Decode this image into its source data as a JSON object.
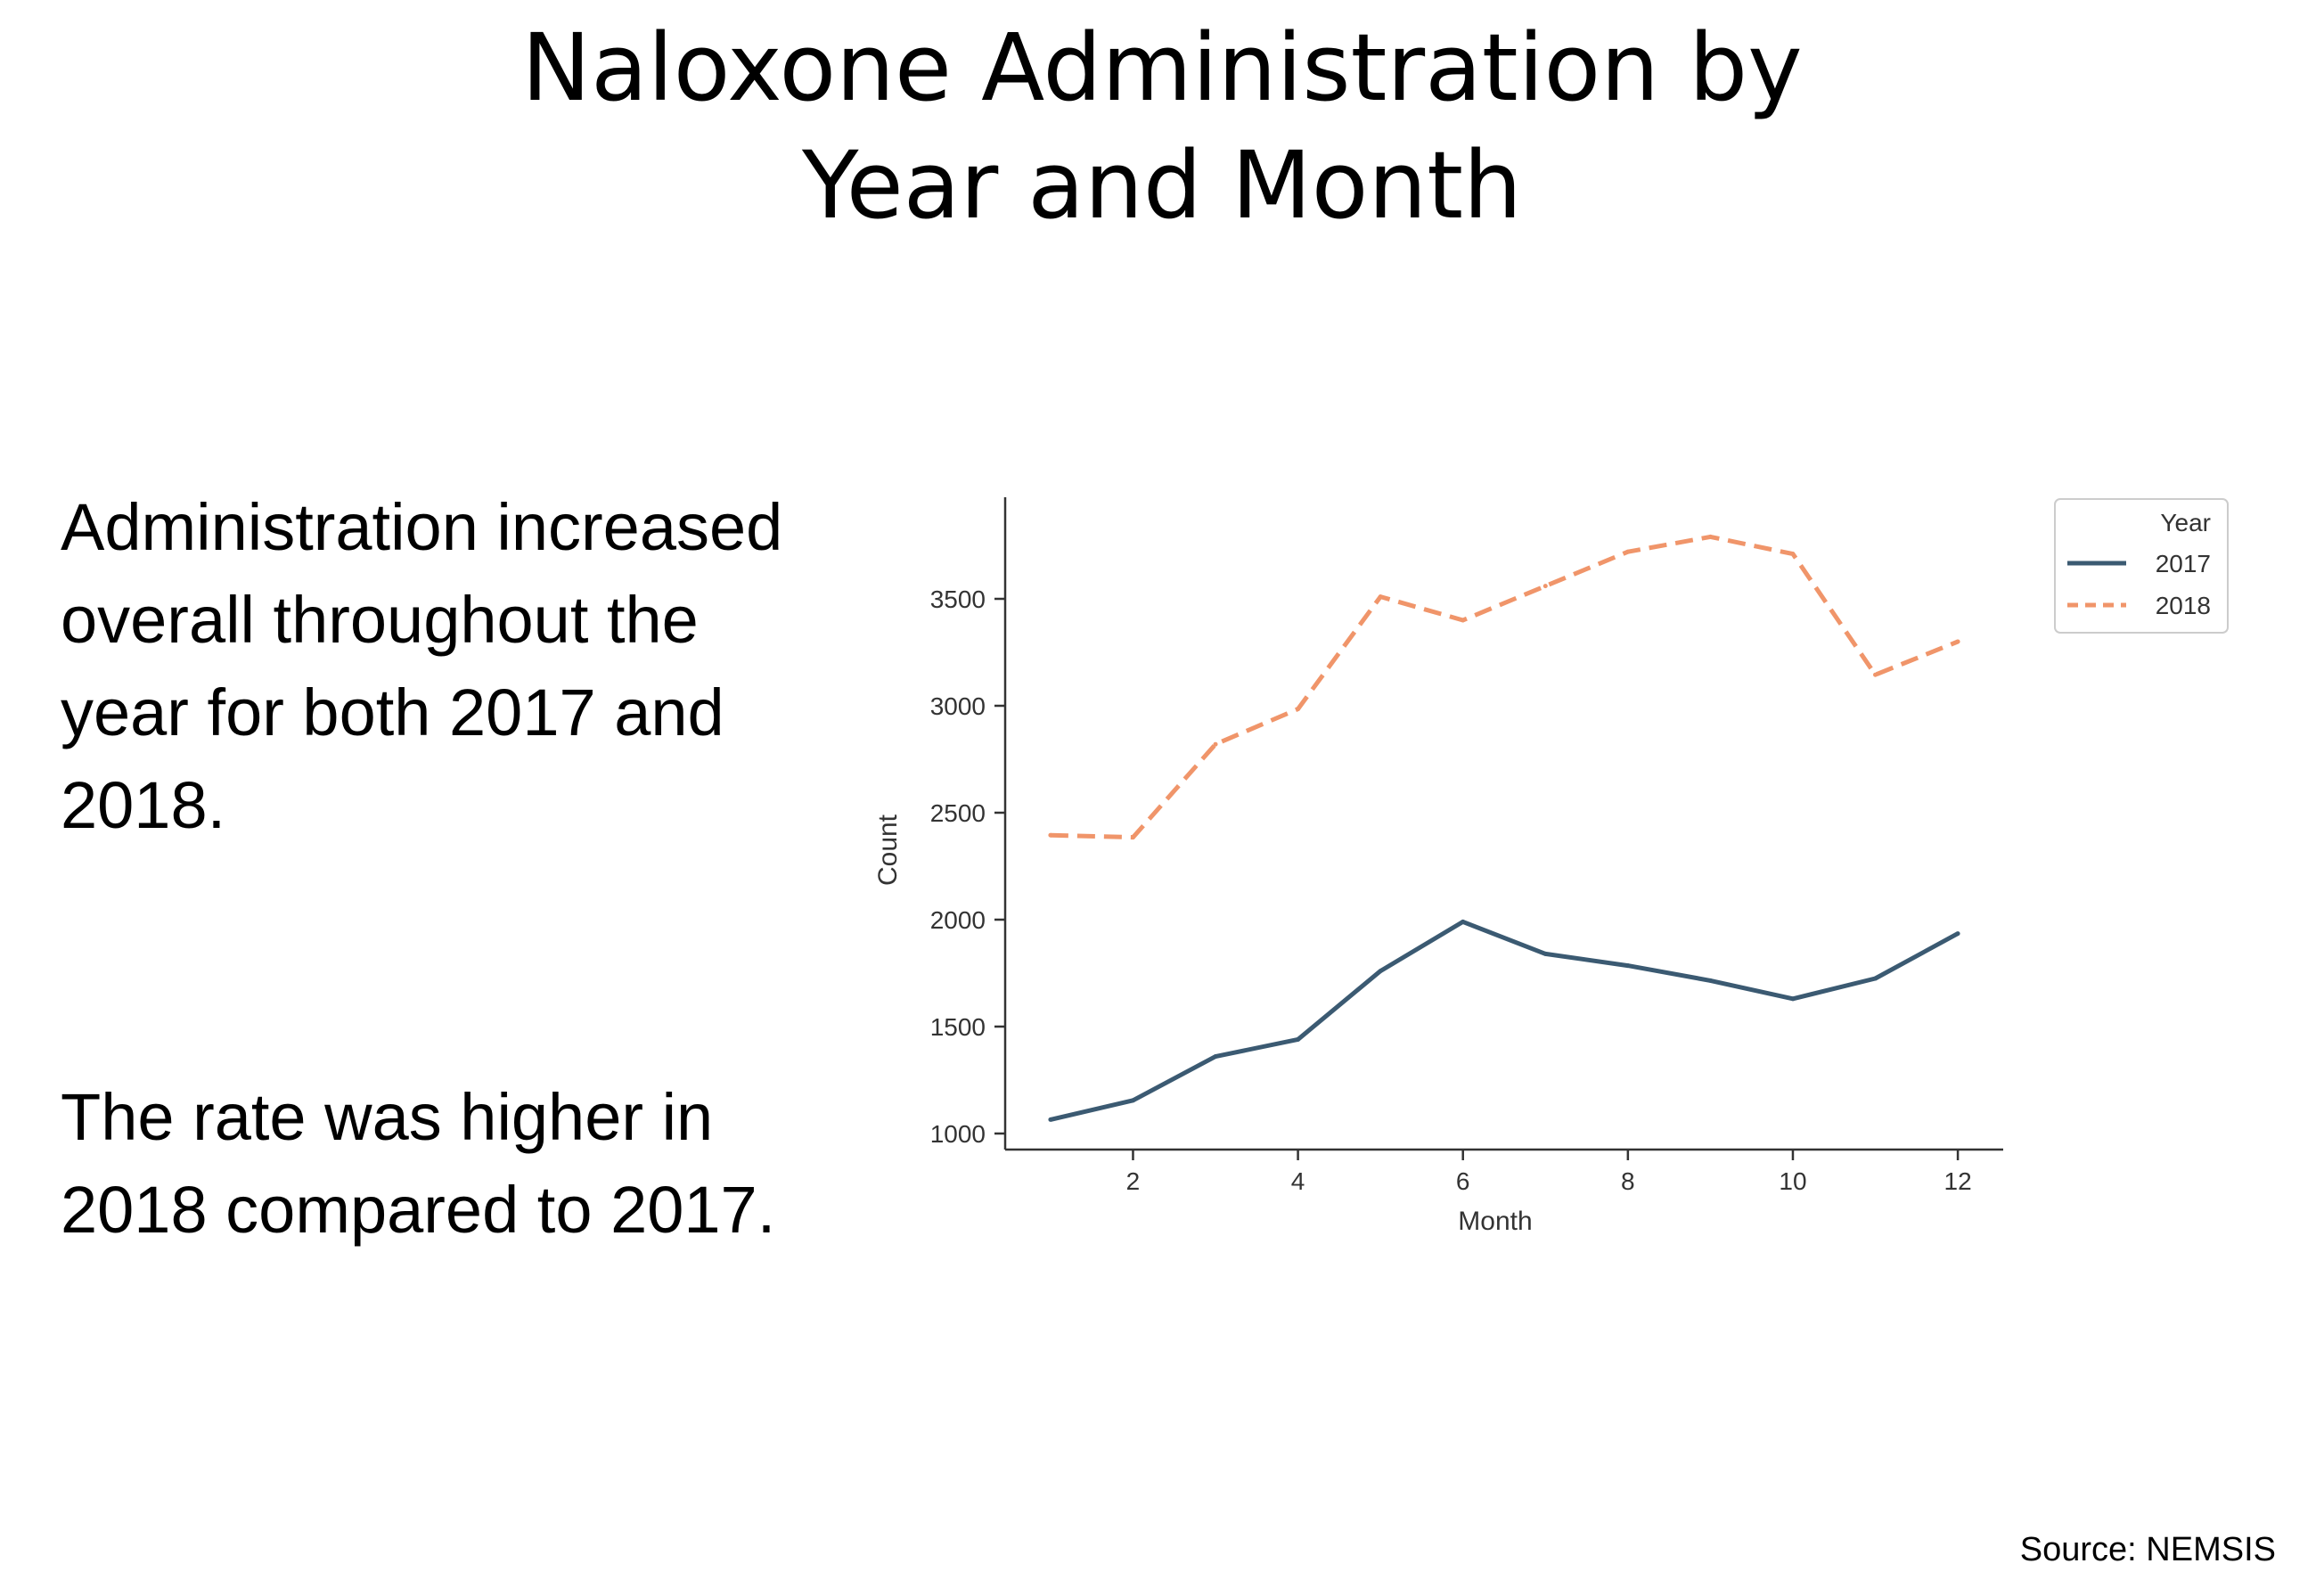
{
  "slide": {
    "title_lines": [
      "Naloxone Administration by",
      "Year and Month"
    ],
    "paragraph1": "Administration increased overall throughout the year for both 2017 and 2018.",
    "paragraph2": "The rate was higher in 2018 compared to 2017.",
    "source": "Source: NEMSIS"
  },
  "chart_data": {
    "type": "line",
    "title": "",
    "xlabel": "Month",
    "ylabel": "Count",
    "xlim": [
      0.45,
      12.55
    ],
    "ylim": [
      925,
      3975
    ],
    "xticks": [
      2,
      4,
      6,
      8,
      10,
      12
    ],
    "yticks": [
      1000,
      1500,
      2000,
      2500,
      3000,
      3500
    ],
    "x": [
      1,
      2,
      3,
      4,
      5,
      6,
      7,
      8,
      9,
      10,
      11,
      12
    ],
    "grid": false,
    "legend": {
      "title": "Year",
      "position": "top-right-outside"
    },
    "series": [
      {
        "name": "2017",
        "color": "#3b5a72",
        "style": "solid",
        "values": [
          1065,
          1155,
          1360,
          1440,
          1760,
          1990,
          1840,
          1785,
          1715,
          1630,
          1725,
          1935
        ]
      },
      {
        "name": "2018",
        "color": "#f0956a",
        "style": "dashed",
        "values": [
          2395,
          2385,
          2820,
          2985,
          3510,
          3400,
          3560,
          3720,
          3790,
          3710,
          3145,
          3300
        ]
      }
    ]
  }
}
